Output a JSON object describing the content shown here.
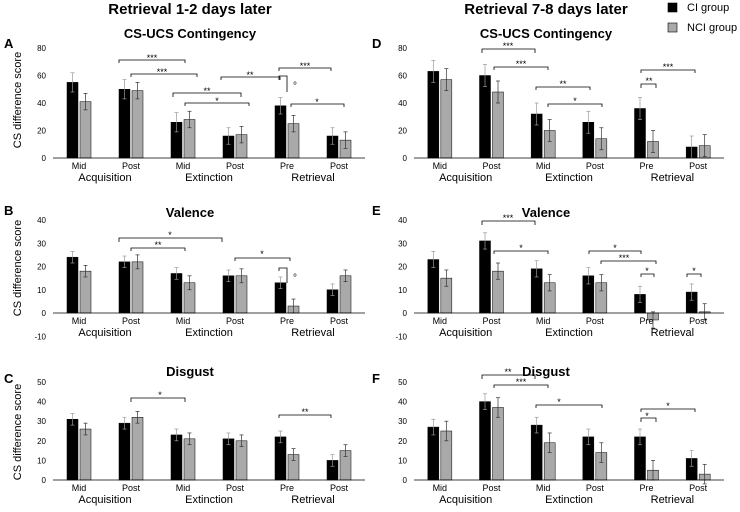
{
  "header": {
    "left_title": "Retrieval 1-2 days later",
    "right_title": "Retrieval 7-8 days later"
  },
  "legend": {
    "items": [
      {
        "name": "CI group",
        "color": "#000000"
      },
      {
        "name": "NCI group",
        "color": "#a9a9a9"
      }
    ]
  },
  "colors": {
    "title_gray": "#8c8c8c",
    "ci": "#000000",
    "nci": "#a9a9a9"
  },
  "chart_data": [
    {
      "panel": "A",
      "title": "CS-UCS Contingency",
      "type": "bar",
      "ylabel": "CS difference score",
      "yticks": [
        0,
        20,
        40,
        60,
        80
      ],
      "ylim": [
        0,
        80
      ],
      "categories": [
        "Mid",
        "Post",
        "Mid",
        "Post",
        "Pre",
        "Post"
      ],
      "groups": [
        "Acquisition",
        "Extinction",
        "Retrieval"
      ],
      "series": [
        {
          "name": "CI group",
          "values": [
            55,
            50,
            26,
            16,
            38,
            16
          ],
          "errors": [
            7,
            7,
            7,
            6,
            6,
            6
          ]
        },
        {
          "name": "NCI group",
          "values": [
            41,
            49,
            28,
            17,
            25,
            13
          ],
          "errors": [
            6,
            6,
            6,
            6,
            6,
            6
          ]
        }
      ],
      "annotations": [
        "***",
        "***",
        "**",
        "*",
        "**",
        "°",
        "***",
        "*"
      ]
    },
    {
      "panel": "B",
      "title": "Valence",
      "type": "bar",
      "ylabel": "CS difference score",
      "yticks": [
        -10,
        0,
        10,
        20,
        30,
        40
      ],
      "ylim": [
        -10,
        40
      ],
      "categories": [
        "Mid",
        "Post",
        "Mid",
        "Post",
        "Pre",
        "Post"
      ],
      "groups": [
        "Acquisition",
        "Extinction",
        "Retrieval"
      ],
      "series": [
        {
          "name": "CI group",
          "values": [
            24,
            22,
            17,
            16,
            13,
            10
          ],
          "errors": [
            2.5,
            2.5,
            2.5,
            2.5,
            2.5,
            2.5
          ]
        },
        {
          "name": "NCI group",
          "values": [
            18,
            22,
            13,
            16,
            3,
            16
          ],
          "errors": [
            2.5,
            3,
            3,
            3,
            3,
            2.5
          ]
        }
      ],
      "annotations": [
        "*",
        "**",
        "*",
        "°"
      ]
    },
    {
      "panel": "C",
      "title": "Disgust",
      "type": "bar",
      "ylabel": "CS difference score",
      "yticks": [
        0,
        10,
        20,
        30,
        40,
        50
      ],
      "ylim": [
        0,
        50
      ],
      "categories": [
        "Mid",
        "Post",
        "Mid",
        "Post",
        "Pre",
        "Post"
      ],
      "groups": [
        "Acquisition",
        "Extinction",
        "Retrieval"
      ],
      "series": [
        {
          "name": "CI group",
          "values": [
            31,
            29,
            23,
            21,
            22,
            10
          ],
          "errors": [
            3,
            3,
            3,
            3,
            3,
            3
          ]
        },
        {
          "name": "NCI group",
          "values": [
            26,
            32,
            21,
            20,
            13,
            15
          ],
          "errors": [
            3,
            3,
            3,
            3,
            3,
            3
          ]
        }
      ],
      "annotations": [
        "*",
        "**"
      ]
    },
    {
      "panel": "D",
      "title": "CS-UCS Contingency",
      "type": "bar",
      "ylabel": "",
      "yticks": [
        0,
        20,
        40,
        60,
        80
      ],
      "ylim": [
        0,
        80
      ],
      "categories": [
        "Mid",
        "Post",
        "Mid",
        "Post",
        "Pre",
        "Post"
      ],
      "groups": [
        "Acquisition",
        "Extinction",
        "Retrieval"
      ],
      "series": [
        {
          "name": "CI group",
          "values": [
            63,
            60,
            32,
            26,
            36,
            8
          ],
          "errors": [
            8,
            8,
            8,
            8,
            8,
            8
          ]
        },
        {
          "name": "NCI group",
          "values": [
            57,
            48,
            20,
            14,
            12,
            9
          ],
          "errors": [
            8,
            8,
            8,
            8,
            8,
            8
          ]
        }
      ],
      "annotations": [
        "***",
        "***",
        "**",
        "*",
        "**",
        "***"
      ]
    },
    {
      "panel": "E",
      "title": "Valence",
      "type": "bar",
      "ylabel": "",
      "yticks": [
        -10,
        0,
        10,
        20,
        30,
        40
      ],
      "ylim": [
        -10,
        40
      ],
      "categories": [
        "Mid",
        "Post",
        "Mid",
        "Post",
        "Pre",
        "Post"
      ],
      "groups": [
        "Acquisition",
        "Extinction",
        "Retrieval"
      ],
      "series": [
        {
          "name": "CI group",
          "values": [
            23,
            31,
            19,
            16,
            8,
            9
          ],
          "errors": [
            3.5,
            3.5,
            3.5,
            3.5,
            3.5,
            3.5
          ]
        },
        {
          "name": "NCI group",
          "values": [
            15,
            18,
            13,
            13,
            -3,
            0.5
          ],
          "errors": [
            3.5,
            3.5,
            3.5,
            3.5,
            3.5,
            3.5
          ]
        }
      ],
      "annotations": [
        "***",
        "*",
        "*",
        "***",
        "*",
        "*"
      ]
    },
    {
      "panel": "F",
      "title": "Disgust",
      "type": "bar",
      "ylabel": "",
      "yticks": [
        0,
        10,
        20,
        30,
        40,
        50
      ],
      "ylim": [
        0,
        50
      ],
      "categories": [
        "Mid",
        "Post",
        "Mid",
        "Post",
        "Pre",
        "Post"
      ],
      "groups": [
        "Acquisition",
        "Extinction",
        "Retrieval"
      ],
      "series": [
        {
          "name": "CI group",
          "values": [
            27,
            40,
            28,
            22,
            22,
            11
          ],
          "errors": [
            4,
            4,
            4,
            4,
            4,
            4
          ]
        },
        {
          "name": "NCI group",
          "values": [
            25,
            37,
            19,
            14,
            5,
            3
          ],
          "errors": [
            5,
            5,
            5,
            5,
            5,
            5
          ]
        }
      ],
      "annotations": [
        "**",
        "***",
        "*",
        "*",
        "*"
      ]
    }
  ]
}
